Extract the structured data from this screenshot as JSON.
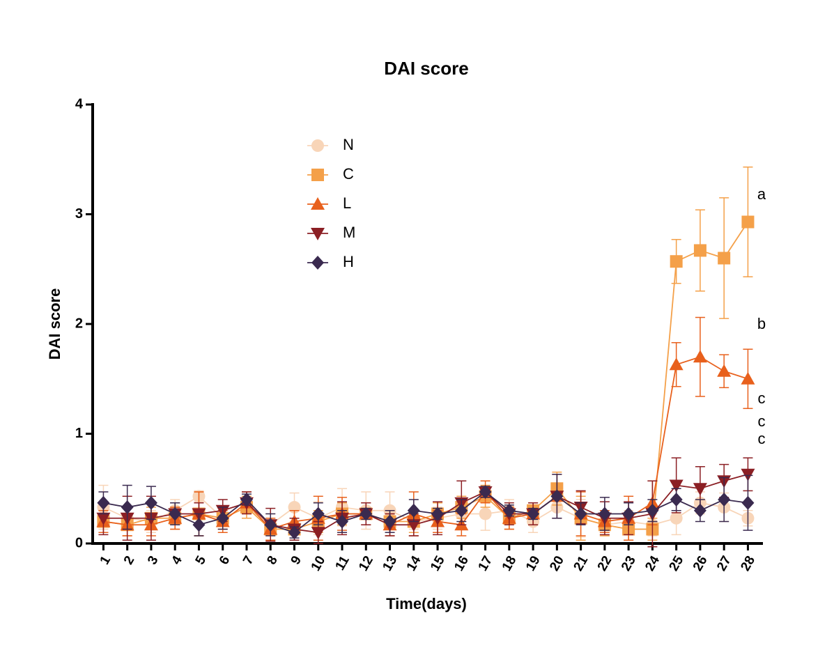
{
  "chart_data": {
    "type": "line",
    "title": "DAI score",
    "x_label": "Time(days)",
    "y_label": "DAI score",
    "x": [
      1,
      2,
      3,
      4,
      5,
      6,
      7,
      8,
      9,
      10,
      11,
      12,
      13,
      14,
      15,
      16,
      17,
      18,
      19,
      20,
      21,
      22,
      23,
      24,
      25,
      26,
      27,
      28
    ],
    "xlim": [
      0.55,
      28.6
    ],
    "xticks": [
      1,
      2,
      3,
      4,
      5,
      6,
      7,
      8,
      9,
      10,
      11,
      12,
      13,
      14,
      15,
      16,
      17,
      18,
      19,
      20,
      21,
      22,
      23,
      24,
      25,
      26,
      27,
      28
    ],
    "ylim": [
      0,
      4
    ],
    "yticks": [
      0,
      1,
      2,
      3,
      4
    ],
    "grid": false,
    "legend_position": "upper left",
    "series": [
      {
        "name": "N",
        "color": "#f8d5b8",
        "marker": "circle",
        "values": [
          0.33,
          0.23,
          0.2,
          0.3,
          0.43,
          0.23,
          0.33,
          0.17,
          0.33,
          0.23,
          0.33,
          0.3,
          0.3,
          0.2,
          0.23,
          0.27,
          0.27,
          0.3,
          0.2,
          0.33,
          0.23,
          0.17,
          0.2,
          0.17,
          0.23,
          0.37,
          0.33,
          0.23
        ],
        "errors": [
          0.2,
          0.1,
          0.1,
          0.1,
          0.05,
          0.1,
          0.1,
          0.1,
          0.13,
          0.15,
          0.17,
          0.17,
          0.17,
          0.07,
          0.1,
          0.1,
          0.15,
          0.1,
          0.1,
          0.1,
          0.17,
          0.1,
          0.1,
          0.1,
          0.15,
          0.1,
          0.13,
          0.07
        ]
      },
      {
        "name": "C",
        "color": "#f4a049",
        "marker": "square",
        "values": [
          0.2,
          0.17,
          0.23,
          0.23,
          0.27,
          0.23,
          0.33,
          0.13,
          0.13,
          0.2,
          0.27,
          0.27,
          0.2,
          0.2,
          0.27,
          0.33,
          0.43,
          0.23,
          0.3,
          0.5,
          0.23,
          0.17,
          0.13,
          0.13,
          2.57,
          2.67,
          2.6,
          2.93
        ],
        "errors": [
          0.1,
          0.1,
          0.1,
          0.1,
          0.2,
          0.1,
          0.1,
          0.1,
          0.1,
          0.1,
          0.1,
          0.1,
          0.1,
          0.1,
          0.1,
          0.1,
          0.1,
          0.1,
          0.05,
          0.15,
          0.2,
          0.1,
          0.1,
          0.1,
          0.2,
          0.37,
          0.55,
          0.5
        ]
      },
      {
        "name": "L",
        "color": "#e8601c",
        "marker": "triangle-up",
        "values": [
          0.2,
          0.17,
          0.17,
          0.23,
          0.27,
          0.2,
          0.37,
          0.13,
          0.2,
          0.23,
          0.27,
          0.27,
          0.17,
          0.27,
          0.2,
          0.17,
          0.47,
          0.23,
          0.27,
          0.43,
          0.27,
          0.2,
          0.23,
          0.37,
          1.63,
          1.7,
          1.57,
          1.5
        ],
        "errors": [
          0.1,
          0.1,
          0.1,
          0.1,
          0.2,
          0.1,
          0.1,
          0.1,
          0.1,
          0.2,
          0.15,
          0.1,
          0.1,
          0.2,
          0.1,
          0.1,
          0.1,
          0.1,
          0.1,
          0.2,
          0.2,
          0.1,
          0.2,
          0.2,
          0.2,
          0.36,
          0.15,
          0.27
        ]
      },
      {
        "name": "M",
        "color": "#8b1f24",
        "marker": "triangle-down",
        "values": [
          0.23,
          0.23,
          0.23,
          0.27,
          0.27,
          0.3,
          0.37,
          0.17,
          0.13,
          0.1,
          0.23,
          0.27,
          0.17,
          0.17,
          0.23,
          0.37,
          0.47,
          0.27,
          0.27,
          0.43,
          0.33,
          0.23,
          0.23,
          0.27,
          0.53,
          0.5,
          0.57,
          0.63
        ],
        "errors": [
          0.15,
          0.2,
          0.2,
          0.1,
          0.1,
          0.1,
          0.1,
          0.15,
          0.1,
          0.1,
          0.15,
          0.1,
          0.1,
          0.1,
          0.15,
          0.2,
          0.05,
          0.1,
          0.1,
          0.2,
          0.15,
          0.15,
          0.15,
          0.3,
          0.25,
          0.2,
          0.15,
          0.15
        ]
      },
      {
        "name": "H",
        "color": "#3a2a4f",
        "marker": "diamond",
        "values": [
          0.37,
          0.33,
          0.37,
          0.27,
          0.17,
          0.23,
          0.4,
          0.17,
          0.1,
          0.27,
          0.2,
          0.27,
          0.2,
          0.3,
          0.27,
          0.3,
          0.47,
          0.3,
          0.27,
          0.43,
          0.27,
          0.27,
          0.27,
          0.3,
          0.4,
          0.3,
          0.4,
          0.37
        ],
        "errors": [
          0.1,
          0.2,
          0.15,
          0.1,
          0.1,
          0.1,
          0.05,
          0.1,
          0.05,
          0.1,
          0.1,
          0.05,
          0.1,
          0.1,
          0.05,
          0.1,
          0.05,
          0.05,
          0.05,
          0.2,
          0.1,
          0.15,
          0.1,
          0.1,
          0.1,
          0.1,
          0.2,
          0.25
        ]
      }
    ],
    "annotations": [
      "a",
      "b",
      "c",
      "c",
      "c"
    ]
  }
}
